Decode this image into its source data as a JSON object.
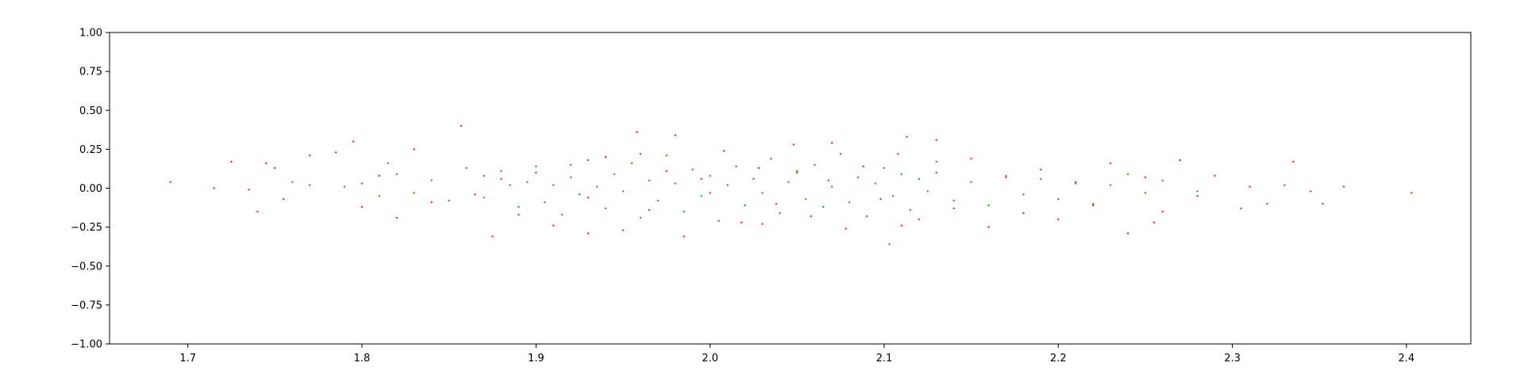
{
  "chart_data": {
    "type": "scatter",
    "title": "",
    "xlabel": "",
    "ylabel": "",
    "xlim": [
      1.655,
      2.437
    ],
    "ylim": [
      -1.0,
      1.0
    ],
    "x_ticks": [
      1.7,
      1.8,
      1.9,
      2.0,
      2.1,
      2.2,
      2.3,
      2.4
    ],
    "x_tick_labels": [
      "1.7",
      "1.8",
      "1.9",
      "2.0",
      "2.1",
      "2.2",
      "2.3",
      "2.4"
    ],
    "y_ticks": [
      1.0,
      0.75,
      0.5,
      0.25,
      0.0,
      -0.25,
      -0.5,
      -0.75,
      -1.0
    ],
    "y_tick_labels": [
      "1.00",
      "0.75",
      "0.50",
      "0.25",
      "0.00",
      "−0.25",
      "−0.50",
      "−0.75",
      "−1.00"
    ],
    "grid": false,
    "legend": "none",
    "series": [
      {
        "color": "#2ca02c",
        "marker_size": 1.2,
        "points": [
          [
            1.76,
            0.04
          ],
          [
            1.77,
            0.02
          ],
          [
            1.79,
            0.01
          ],
          [
            1.8,
            0.03
          ],
          [
            1.81,
            -0.05
          ],
          [
            1.815,
            0.16
          ],
          [
            1.82,
            0.09
          ],
          [
            1.83,
            -0.03
          ],
          [
            1.84,
            0.05
          ],
          [
            1.85,
            -0.08
          ],
          [
            1.86,
            0.13
          ],
          [
            1.87,
            -0.06
          ],
          [
            1.88,
            0.11
          ],
          [
            1.885,
            0.02
          ],
          [
            1.89,
            -0.12
          ],
          [
            1.895,
            0.04
          ],
          [
            1.9,
            0.14
          ],
          [
            1.905,
            -0.09
          ],
          [
            1.91,
            0.02
          ],
          [
            1.915,
            -0.17
          ],
          [
            1.92,
            0.07
          ],
          [
            1.925,
            -0.04
          ],
          [
            1.93,
            0.18
          ],
          [
            1.935,
            0.01
          ],
          [
            1.94,
            -0.13
          ],
          [
            1.945,
            0.09
          ],
          [
            1.95,
            -0.02
          ],
          [
            1.955,
            0.16
          ],
          [
            1.96,
            -0.19
          ],
          [
            1.965,
            0.05
          ],
          [
            1.97,
            -0.08
          ],
          [
            1.975,
            0.21
          ],
          [
            1.98,
            0.03
          ],
          [
            1.985,
            -0.15
          ],
          [
            1.99,
            0.12
          ],
          [
            1.995,
            -0.05
          ],
          [
            2.0,
            0.08
          ],
          [
            2.005,
            -0.21
          ],
          [
            2.01,
            0.02
          ],
          [
            2.015,
            0.14
          ],
          [
            2.02,
            -0.11
          ],
          [
            2.025,
            0.06
          ],
          [
            2.03,
            -0.03
          ],
          [
            2.035,
            0.19
          ],
          [
            2.04,
            -0.16
          ],
          [
            2.045,
            0.04
          ],
          [
            2.05,
            0.11
          ],
          [
            2.055,
            -0.07
          ],
          [
            2.06,
            0.15
          ],
          [
            2.065,
            -0.12
          ],
          [
            2.07,
            0.01
          ],
          [
            2.075,
            0.22
          ],
          [
            2.08,
            -0.09
          ],
          [
            2.085,
            0.07
          ],
          [
            2.09,
            -0.18
          ],
          [
            2.095,
            0.03
          ],
          [
            2.1,
            0.13
          ],
          [
            2.103,
            -0.36
          ],
          [
            2.105,
            -0.05
          ],
          [
            2.11,
            0.09
          ],
          [
            2.115,
            -0.14
          ],
          [
            2.12,
            0.06
          ],
          [
            2.125,
            -0.02
          ],
          [
            2.13,
            0.17
          ],
          [
            2.14,
            -0.08
          ],
          [
            2.15,
            0.04
          ],
          [
            2.16,
            -0.11
          ],
          [
            2.17,
            0.08
          ],
          [
            2.18,
            -0.04
          ],
          [
            2.19,
            0.06
          ],
          [
            2.2,
            -0.07
          ],
          [
            2.21,
            0.03
          ],
          [
            2.22,
            -0.1
          ],
          [
            2.23,
            0.02
          ],
          [
            2.24,
            0.09
          ],
          [
            2.25,
            -0.03
          ],
          [
            2.26,
            0.05
          ],
          [
            2.28,
            -0.02
          ],
          [
            2.33,
            0.02
          ],
          [
            1.87,
            0.08
          ]
        ]
      },
      {
        "color": "#ff2020",
        "marker_size": 1.2,
        "points": [
          [
            1.69,
            0.04
          ],
          [
            1.715,
            0.0
          ],
          [
            1.725,
            0.17
          ],
          [
            1.735,
            -0.01
          ],
          [
            1.74,
            -0.15
          ],
          [
            1.745,
            0.16
          ],
          [
            1.75,
            0.13
          ],
          [
            1.755,
            -0.07
          ],
          [
            1.77,
            0.21
          ],
          [
            1.785,
            0.23
          ],
          [
            1.795,
            0.3
          ],
          [
            1.8,
            -0.12
          ],
          [
            1.81,
            0.08
          ],
          [
            1.82,
            -0.19
          ],
          [
            1.83,
            0.25
          ],
          [
            1.84,
            -0.09
          ],
          [
            1.857,
            0.4
          ],
          [
            1.865,
            -0.04
          ],
          [
            1.875,
            -0.31
          ],
          [
            1.88,
            0.06
          ],
          [
            1.89,
            -0.17
          ],
          [
            1.9,
            0.1
          ],
          [
            1.91,
            -0.24
          ],
          [
            1.92,
            0.15
          ],
          [
            1.93,
            -0.06
          ],
          [
            1.94,
            0.2
          ],
          [
            1.95,
            -0.27
          ],
          [
            1.958,
            0.36
          ],
          [
            1.965,
            -0.14
          ],
          [
            1.975,
            0.11
          ],
          [
            1.985,
            -0.31
          ],
          [
            1.995,
            0.06
          ],
          [
            2.0,
            -0.03
          ],
          [
            2.008,
            0.24
          ],
          [
            2.018,
            -0.22
          ],
          [
            2.028,
            0.13
          ],
          [
            2.038,
            -0.1
          ],
          [
            2.048,
            0.28
          ],
          [
            2.058,
            -0.18
          ],
          [
            2.068,
            0.05
          ],
          [
            2.078,
            -0.26
          ],
          [
            2.088,
            0.14
          ],
          [
            2.098,
            -0.07
          ],
          [
            2.108,
            0.22
          ],
          [
            2.113,
            0.33
          ],
          [
            2.12,
            -0.2
          ],
          [
            2.13,
            0.1
          ],
          [
            2.14,
            -0.13
          ],
          [
            2.15,
            0.19
          ],
          [
            2.16,
            -0.25
          ],
          [
            2.17,
            0.07
          ],
          [
            2.18,
            -0.16
          ],
          [
            2.19,
            0.12
          ],
          [
            2.2,
            -0.2
          ],
          [
            2.21,
            0.04
          ],
          [
            2.22,
            -0.11
          ],
          [
            2.23,
            0.16
          ],
          [
            2.24,
            -0.29
          ],
          [
            2.25,
            0.07
          ],
          [
            2.26,
            -0.15
          ],
          [
            2.27,
            0.18
          ],
          [
            2.28,
            -0.05
          ],
          [
            2.29,
            0.08
          ],
          [
            2.305,
            -0.13
          ],
          [
            2.31,
            0.01
          ],
          [
            2.32,
            -0.1
          ],
          [
            2.335,
            0.17
          ],
          [
            2.345,
            -0.02
          ],
          [
            2.352,
            -0.1
          ],
          [
            2.364,
            0.01
          ],
          [
            2.403,
            -0.03
          ],
          [
            2.255,
            -0.22
          ],
          [
            2.13,
            0.31
          ],
          [
            1.98,
            0.34
          ],
          [
            2.07,
            0.29
          ],
          [
            1.93,
            -0.29
          ],
          [
            2.03,
            -0.23
          ],
          [
            2.11,
            -0.24
          ],
          [
            1.96,
            0.22
          ],
          [
            2.05,
            0.1
          ]
        ]
      }
    ]
  }
}
